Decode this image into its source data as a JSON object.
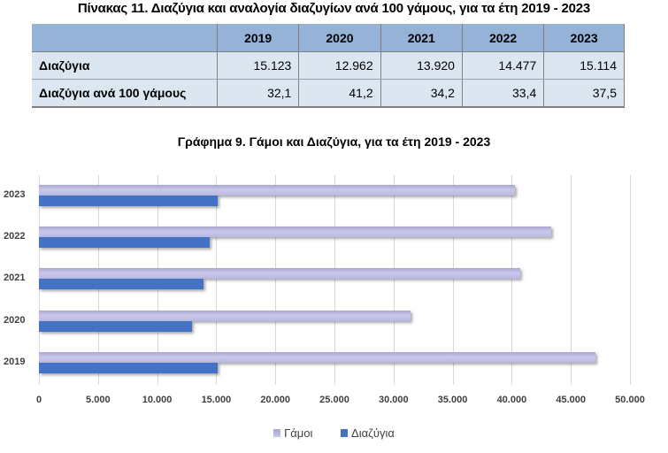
{
  "table": {
    "title": "Πίνακας 11. Διαζύγια και αναλογία διαζυγίων ανά 100 γάμους, για τα έτη 2019 - 2023",
    "columns": [
      "",
      "2019",
      "2020",
      "2021",
      "2022",
      "2023"
    ],
    "rows": [
      {
        "label": "Διαζύγια",
        "values": [
          "15.123",
          "12.962",
          "13.920",
          "14.477",
          "15.114"
        ]
      },
      {
        "label": "Διαζύγια ανά 100 γάμους",
        "values": [
          "32,1",
          "41,2",
          "34,2",
          "33,4",
          "37,5"
        ]
      }
    ],
    "colors": {
      "header": "#95b3d7",
      "row": "#dce6f1"
    }
  },
  "chart": {
    "title": "Γράφημα 9. Γάμοι και Διαζύγια, για τα έτη 2019 - 2023",
    "legend": [
      "Γάμοι",
      "Διαζύγια"
    ],
    "x_ticks": [
      "0",
      "5.000",
      "10.000",
      "15.000",
      "20.000",
      "25.000",
      "30.000",
      "35.000",
      "40.000",
      "45.000",
      "50.000"
    ],
    "y_labels": [
      "2023",
      "2022",
      "2021",
      "2020",
      "2019"
    ]
  },
  "chart_data": {
    "type": "bar",
    "orientation": "horizontal",
    "title": "Γράφημα 9. Γάμοι και Διαζύγια, για τα έτη 2019 - 2023",
    "categories": [
      "2019",
      "2020",
      "2021",
      "2022",
      "2023"
    ],
    "series": [
      {
        "name": "Γάμοι",
        "values": [
          47112,
          31461,
          40702,
          43344,
          40304
        ],
        "color": "#b9b8e0"
      },
      {
        "name": "Διαζύγια",
        "values": [
          15123,
          12962,
          13920,
          14477,
          15114
        ],
        "color": "#4472c4"
      }
    ],
    "xlabel": "",
    "ylabel": "",
    "xlim": [
      0,
      50000
    ],
    "grid": true,
    "legend_position": "bottom"
  }
}
